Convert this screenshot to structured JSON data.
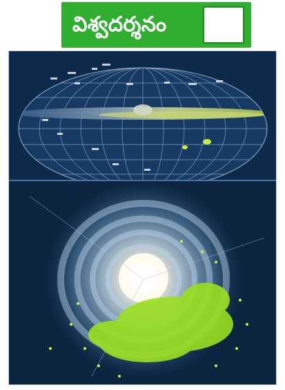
{
  "header": {
    "title": "విశ్వదర్శనం",
    "accent_color": "#2fae2f",
    "box_border_color": "#1f8b1f"
  },
  "figure": {
    "sky_map": {
      "background_color": "#0e2a4a",
      "highlight_color": "#d8f04a"
    },
    "galaxy": {
      "core_color": "#ffffff",
      "arm_color": "#9fc6e6",
      "star_marker_color": "#9be020"
    }
  }
}
